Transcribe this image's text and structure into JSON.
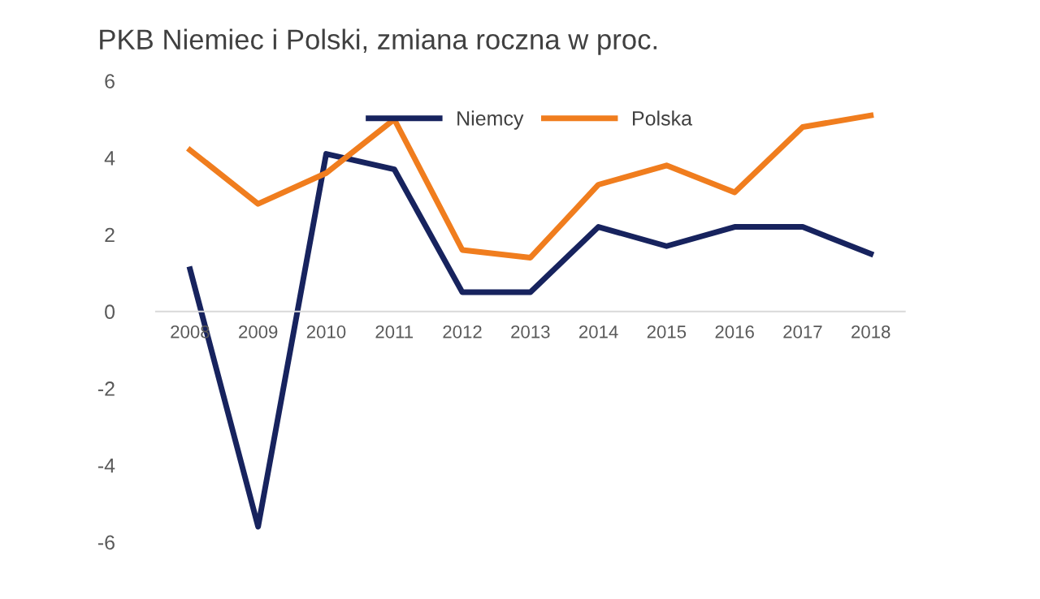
{
  "chart_data": {
    "type": "line",
    "title": "PKB Niemiec i Polski, zmiana roczna w proc.",
    "categories": [
      "2008",
      "2009",
      "2010",
      "2011",
      "2012",
      "2013",
      "2014",
      "2015",
      "2016",
      "2017",
      "2018"
    ],
    "series": [
      {
        "name": "Niemcy",
        "color": "#17235e",
        "values": [
          1.1,
          -5.6,
          4.1,
          3.7,
          0.5,
          0.5,
          2.2,
          1.7,
          2.2,
          2.2,
          1.5
        ]
      },
      {
        "name": "Polska",
        "color": "#f07d1e",
        "values": [
          4.2,
          2.8,
          3.6,
          5.0,
          1.6,
          1.4,
          3.3,
          3.8,
          3.1,
          4.8,
          5.1
        ]
      }
    ],
    "ylim": [
      -6,
      6
    ],
    "yticks": [
      -6,
      -4,
      -2,
      0,
      2,
      4,
      6
    ],
    "grid": false,
    "legend": "top",
    "marker": "none",
    "line_style": "solid"
  }
}
